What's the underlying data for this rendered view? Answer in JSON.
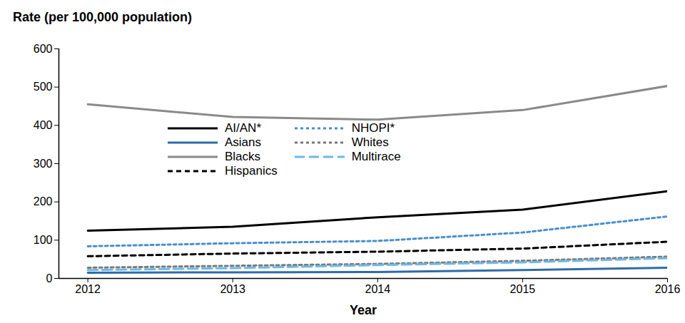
{
  "chart_data": {
    "type": "line",
    "y_label": "Rate (per 100,000 population)",
    "x_label": "Year",
    "x": [
      2012,
      2013,
      2014,
      2015,
      2016
    ],
    "series": [
      {
        "name": "AI/AN*",
        "color": "#000000",
        "line_style": "solid",
        "values": [
          125,
          135,
          160,
          180,
          228
        ]
      },
      {
        "name": "Asians",
        "color": "#2f6ca8",
        "line_style": "solid",
        "values": [
          15,
          16,
          17,
          22,
          28
        ]
      },
      {
        "name": "Blacks",
        "color": "#8a8a8a",
        "line_style": "solid",
        "values": [
          455,
          422,
          415,
          440,
          503
        ]
      },
      {
        "name": "Hispanics",
        "color": "#000000",
        "line_style": "dashed",
        "values": [
          58,
          65,
          70,
          78,
          96
        ]
      },
      {
        "name": "NHOPI*",
        "color": "#4a8fcb",
        "line_style": "dotted",
        "values": [
          84,
          92,
          98,
          120,
          162
        ]
      },
      {
        "name": "Whites",
        "color": "#7a7a7a",
        "line_style": "dotted",
        "values": [
          28,
          33,
          38,
          46,
          57
        ]
      },
      {
        "name": "Multirace",
        "color": "#6bb9e8",
        "line_style": "longdash",
        "values": [
          22,
          27,
          35,
          42,
          53
        ]
      }
    ],
    "xlim": [
      2011.8,
      2016
    ],
    "xticks": [
      2012,
      2013,
      2014,
      2015,
      2016
    ],
    "ylim": [
      0,
      600
    ],
    "yticks": [
      0,
      100,
      200,
      300,
      400,
      500,
      600
    ],
    "grid": false,
    "legend": "top"
  }
}
